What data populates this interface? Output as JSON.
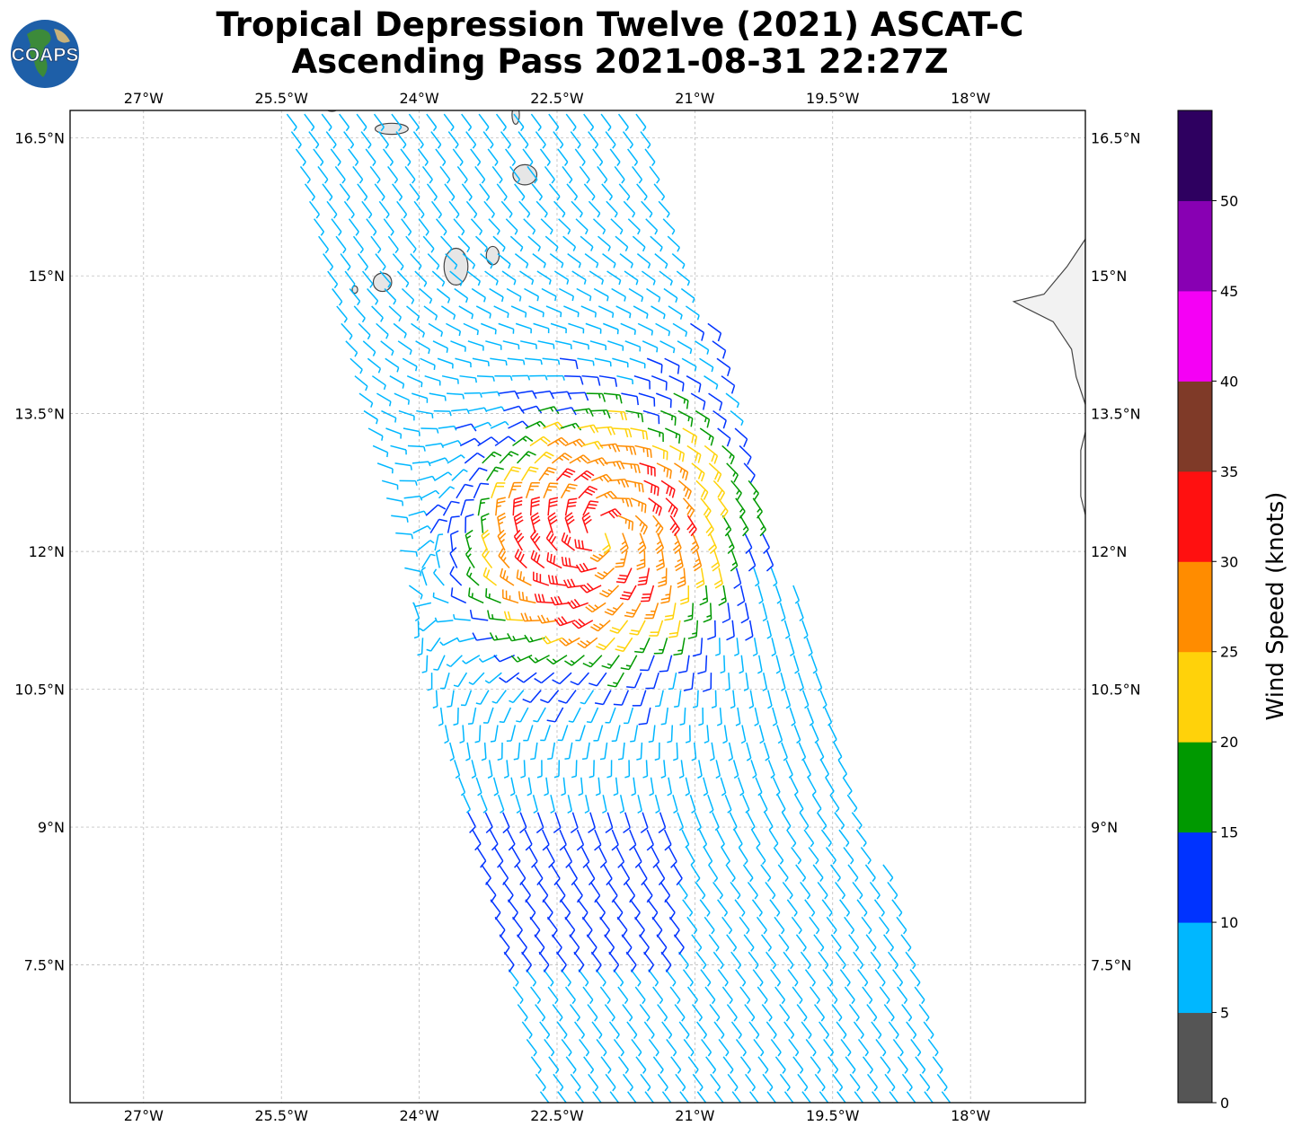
{
  "logo": {
    "text": "COAPS"
  },
  "title": {
    "line1": "Tropical Depression Twelve (2021) ASCAT-C",
    "line2": "Ascending Pass 2021-08-31 22:27Z"
  },
  "map": {
    "lon_range": [
      -27.8,
      -16.75
    ],
    "lat_range": [
      6.0,
      16.8
    ],
    "lon_ticks": [
      {
        "value": -27.0,
        "label": "27°W"
      },
      {
        "value": -25.5,
        "label": "25.5°W"
      },
      {
        "value": -24.0,
        "label": "24°W"
      },
      {
        "value": -22.5,
        "label": "22.5°W"
      },
      {
        "value": -21.0,
        "label": "21°W"
      },
      {
        "value": -19.5,
        "label": "19.5°W"
      },
      {
        "value": -18.0,
        "label": "18°W"
      }
    ],
    "lat_ticks": [
      {
        "value": 16.5,
        "label": "16.5°N"
      },
      {
        "value": 15.0,
        "label": "15°N"
      },
      {
        "value": 13.5,
        "label": "13.5°N"
      },
      {
        "value": 12.0,
        "label": "12°N"
      },
      {
        "value": 10.5,
        "label": "10.5°N"
      },
      {
        "value": 9.0,
        "label": "9°N"
      },
      {
        "value": 7.5,
        "label": "7.5°N"
      }
    ],
    "gridlines": true,
    "storm_center": {
      "lon": -22.0,
      "lat": 12.2
    },
    "swath_corners": [
      {
        "lon": -25.5,
        "lat": 16.8
      },
      {
        "lon": -21.6,
        "lat": 16.8
      },
      {
        "lon": -18.1,
        "lat": 6.0
      },
      {
        "lon": -22.7,
        "lat": 6.0
      }
    ],
    "wind_barbs": "synthetic cyclonic field over the swath; colored by speed class",
    "coastline_color": "#444444"
  },
  "colorbar": {
    "label": "Wind Speed (knots)",
    "ticks": [
      "0",
      "5",
      "10",
      "15",
      "20",
      "25",
      "30",
      "35",
      "40",
      "45",
      "50"
    ],
    "bins": [
      {
        "range": [
          0,
          5
        ],
        "color": "#555555"
      },
      {
        "range": [
          5,
          10
        ],
        "color": "#00b7ff"
      },
      {
        "range": [
          10,
          15
        ],
        "color": "#0033ff"
      },
      {
        "range": [
          15,
          20
        ],
        "color": "#009900"
      },
      {
        "range": [
          20,
          25
        ],
        "color": "#ffd20a"
      },
      {
        "range": [
          25,
          30
        ],
        "color": "#ff8c00"
      },
      {
        "range": [
          30,
          35
        ],
        "color": "#ff1010"
      },
      {
        "range": [
          35,
          40
        ],
        "color": "#7f3a28"
      },
      {
        "range": [
          40,
          45
        ],
        "color": "#f500f5"
      },
      {
        "range": [
          45,
          50
        ],
        "color": "#8800b3"
      },
      {
        "range": [
          50,
          55
        ],
        "color": "#2e0060"
      }
    ]
  }
}
